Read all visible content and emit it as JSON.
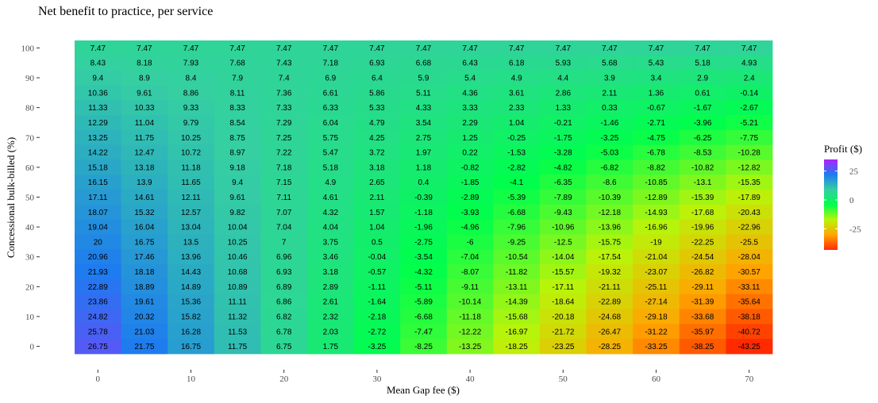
{
  "chart_data": {
    "type": "heatmap",
    "title": "Net benefit to practice, per service",
    "xlabel": "Mean Gap fee ($)",
    "ylabel": "Concessional bulk-billed (%)",
    "x": [
      0,
      5,
      10,
      15,
      20,
      25,
      30,
      35,
      40,
      45,
      50,
      55,
      60,
      65,
      70
    ],
    "y": [
      100,
      95,
      90,
      85,
      80,
      75,
      70,
      65,
      60,
      55,
      50,
      45,
      40,
      35,
      30,
      25,
      20,
      15,
      10,
      5,
      0
    ],
    "x_ticks": [
      0,
      10,
      20,
      30,
      40,
      50,
      60,
      70
    ],
    "y_ticks": [
      100,
      90,
      80,
      70,
      60,
      50,
      40,
      30,
      20,
      10,
      0
    ],
    "values": [
      [
        "7.47",
        "7.47",
        "7.47",
        "7.47",
        "7.47",
        "7.47",
        "7.47",
        "7.47",
        "7.47",
        "7.47",
        "7.47",
        "7.47",
        "7.47",
        "7.47",
        "7.47"
      ],
      [
        "8.43",
        "8.18",
        "7.93",
        "7.68",
        "7.43",
        "7.18",
        "6.93",
        "6.68",
        "6.43",
        "6.18",
        "5.93",
        "5.68",
        "5.43",
        "5.18",
        "4.93"
      ],
      [
        "9.4",
        "8.9",
        "8.4",
        "7.9",
        "7.4",
        "6.9",
        "6.4",
        "5.9",
        "5.4",
        "4.9",
        "4.4",
        "3.9",
        "3.4",
        "2.9",
        "2.4"
      ],
      [
        "10.36",
        "9.61",
        "8.86",
        "8.11",
        "7.36",
        "6.61",
        "5.86",
        "5.11",
        "4.36",
        "3.61",
        "2.86",
        "2.11",
        "1.36",
        "0.61",
        "-0.14"
      ],
      [
        "11.33",
        "10.33",
        "9.33",
        "8.33",
        "7.33",
        "6.33",
        "5.33",
        "4.33",
        "3.33",
        "2.33",
        "1.33",
        "0.33",
        "-0.67",
        "-1.67",
        "-2.67"
      ],
      [
        "12.29",
        "11.04",
        "9.79",
        "8.54",
        "7.29",
        "6.04",
        "4.79",
        "3.54",
        "2.29",
        "1.04",
        "-0.21",
        "-1.46",
        "-2.71",
        "-3.96",
        "-5.21"
      ],
      [
        "13.25",
        "11.75",
        "10.25",
        "8.75",
        "7.25",
        "5.75",
        "4.25",
        "2.75",
        "1.25",
        "-0.25",
        "-1.75",
        "-3.25",
        "-4.75",
        "-6.25",
        "-7.75"
      ],
      [
        "14.22",
        "12.47",
        "10.72",
        "8.97",
        "7.22",
        "5.47",
        "3.72",
        "1.97",
        "0.22",
        "-1.53",
        "-3.28",
        "-5.03",
        "-6.78",
        "-8.53",
        "-10.28"
      ],
      [
        "15.18",
        "13.18",
        "11.18",
        "9.18",
        "7.18",
        "5.18",
        "3.18",
        "1.18",
        "-0.82",
        "-2.82",
        "-4.82",
        "-6.82",
        "-8.82",
        "-10.82",
        "-12.82"
      ],
      [
        "16.15",
        "13.9",
        "11.65",
        "9.4",
        "7.15",
        "4.9",
        "2.65",
        "0.4",
        "-1.85",
        "-4.1",
        "-6.35",
        "-8.6",
        "-10.85",
        "-13.1",
        "-15.35"
      ],
      [
        "17.11",
        "14.61",
        "12.11",
        "9.61",
        "7.11",
        "4.61",
        "2.11",
        "-0.39",
        "-2.89",
        "-5.39",
        "-7.89",
        "-10.39",
        "-12.89",
        "-15.39",
        "-17.89"
      ],
      [
        "18.07",
        "15.32",
        "12.57",
        "9.82",
        "7.07",
        "4.32",
        "1.57",
        "-1.18",
        "-3.93",
        "-6.68",
        "-9.43",
        "-12.18",
        "-14.93",
        "-17.68",
        "-20.43"
      ],
      [
        "19.04",
        "16.04",
        "13.04",
        "10.04",
        "7.04",
        "4.04",
        "1.04",
        "-1.96",
        "-4.96",
        "-7.96",
        "-10.96",
        "-13.96",
        "-16.96",
        "-19.96",
        "-22.96"
      ],
      [
        "20",
        "16.75",
        "13.5",
        "10.25",
        "7",
        "3.75",
        "0.5",
        "-2.75",
        "-6",
        "-9.25",
        "-12.5",
        "-15.75",
        "-19",
        "-22.25",
        "-25.5"
      ],
      [
        "20.96",
        "17.46",
        "13.96",
        "10.46",
        "6.96",
        "3.46",
        "-0.04",
        "-3.54",
        "-7.04",
        "-10.54",
        "-14.04",
        "-17.54",
        "-21.04",
        "-24.54",
        "-28.04"
      ],
      [
        "21.93",
        "18.18",
        "14.43",
        "10.68",
        "6.93",
        "3.18",
        "-0.57",
        "-4.32",
        "-8.07",
        "-11.82",
        "-15.57",
        "-19.32",
        "-23.07",
        "-26.82",
        "-30.57"
      ],
      [
        "22.89",
        "18.89",
        "14.89",
        "10.89",
        "6.89",
        "2.89",
        "-1.11",
        "-5.11",
        "-9.11",
        "-13.11",
        "-17.11",
        "-21.11",
        "-25.11",
        "-29.11",
        "-33.11"
      ],
      [
        "23.86",
        "19.61",
        "15.36",
        "11.11",
        "6.86",
        "2.61",
        "-1.64",
        "-5.89",
        "-10.14",
        "-14.39",
        "-18.64",
        "-22.89",
        "-27.14",
        "-31.39",
        "-35.64"
      ],
      [
        "24.82",
        "20.32",
        "15.82",
        "11.32",
        "6.82",
        "2.32",
        "-2.18",
        "-6.68",
        "-11.18",
        "-15.68",
        "-20.18",
        "-24.68",
        "-29.18",
        "-33.68",
        "-38.18"
      ],
      [
        "25.78",
        "21.03",
        "16.28",
        "11.53",
        "6.78",
        "2.03",
        "-2.72",
        "-7.47",
        "-12.22",
        "-16.97",
        "-21.72",
        "-26.47",
        "-31.22",
        "-35.97",
        "-40.72"
      ],
      [
        "26.75",
        "21.75",
        "16.75",
        "11.75",
        "6.75",
        "1.75",
        "-3.25",
        "-8.25",
        "-13.25",
        "-18.25",
        "-23.25",
        "-28.25",
        "-33.25",
        "-38.25",
        "-43.25"
      ]
    ],
    "legend": {
      "title": "Profit ($)",
      "ticks": [
        25,
        0,
        -25
      ],
      "placement": "right",
      "colorscale": [
        "#ff2a00",
        "#ffa600",
        "#b9f40a",
        "#00ff4c",
        "#35cfa2",
        "#1e7bf0",
        "#b020ff"
      ],
      "range": [
        -43.25,
        35
      ]
    },
    "grid": false
  }
}
